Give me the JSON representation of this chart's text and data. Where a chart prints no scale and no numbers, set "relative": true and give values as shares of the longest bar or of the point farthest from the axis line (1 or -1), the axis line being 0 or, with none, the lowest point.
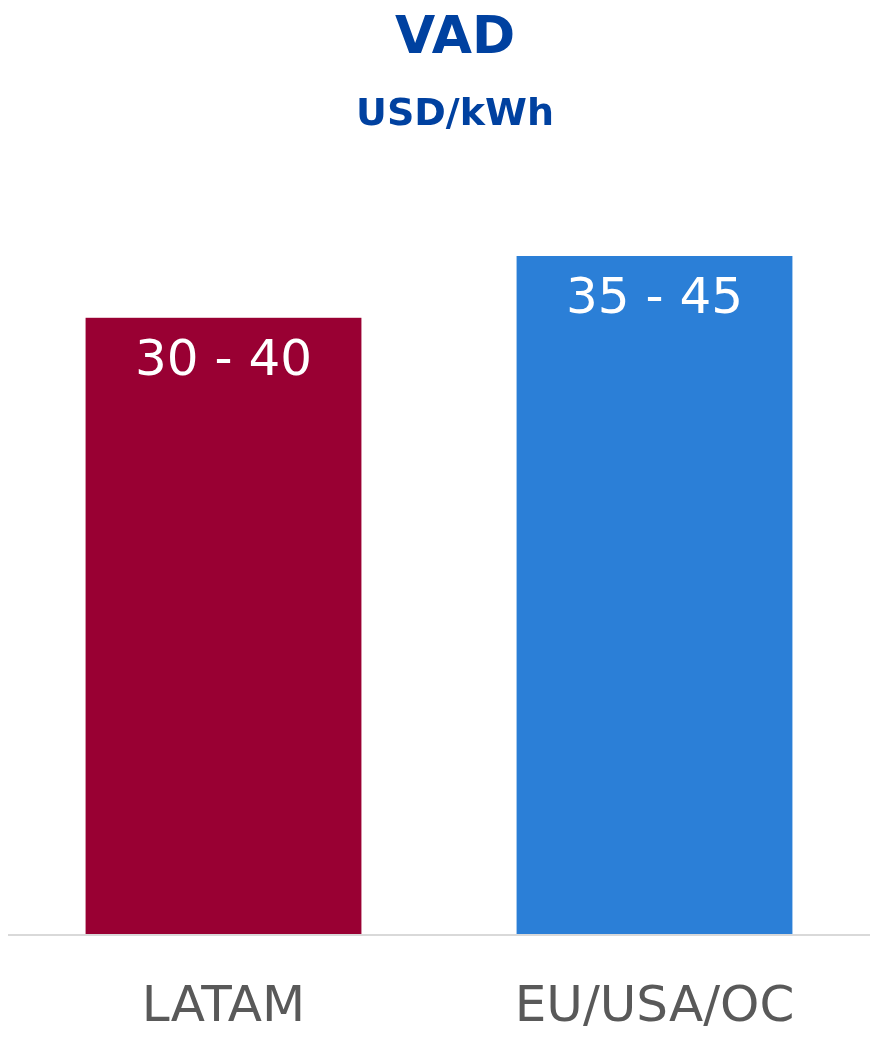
{
  "chart_data": {
    "type": "bar",
    "title": "VAD",
    "subtitle": "USD/kWh",
    "relative": true,
    "categories": [
      "LATAM",
      "EU/USA/OC"
    ],
    "values": [
      0.909,
      1
    ],
    "colors": [
      "#990033",
      "#2b7fd7"
    ],
    "annotations": [
      "30 - 40",
      "35 - 45"
    ]
  }
}
